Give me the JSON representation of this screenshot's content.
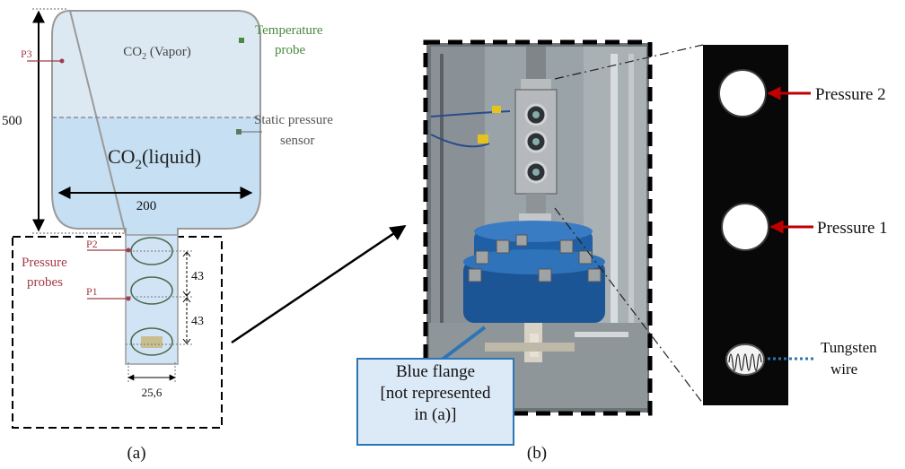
{
  "panel_a": {
    "vapor_label": "CO",
    "vapor_label_sub": "2",
    "vapor_label_rest": " (Vapor)",
    "liquid_label": "CO",
    "liquid_label_sub": "2",
    "liquid_label_rest": "(liquid)",
    "temperature_probe_line1": "Temperature",
    "temperature_probe_line2": "probe",
    "static_sensor_line1": "Static pressure",
    "static_sensor_line2": "sensor",
    "height_dim": "500",
    "width_dim": "200",
    "p1": "P1",
    "p2": "P2",
    "p3": "P3",
    "pressure_probes_line1": "Pressure",
    "pressure_probes_line2": "probes",
    "spacing_upper": "43",
    "spacing_lower": "43",
    "section_width": "25,6",
    "caption": "(a)"
  },
  "panel_b": {
    "callout_line1": "Blue flange",
    "callout_line2": "[not represented",
    "callout_line3": "in (a)]",
    "caption": "(b)"
  },
  "panel_c": {
    "pressure2_label": "Pressure 2",
    "pressure1_label": "Pressure 1",
    "tungsten_line1": "Tungsten",
    "tungsten_line2": "wire"
  },
  "colors": {
    "vapor_fill": "#dce9f3",
    "liquid_fill": "#c6dff2",
    "probe_red": "#a23b47",
    "temp_green": "#4a8a43",
    "flange_blue": "#2e75b6",
    "arrow_red": "#c00000"
  }
}
